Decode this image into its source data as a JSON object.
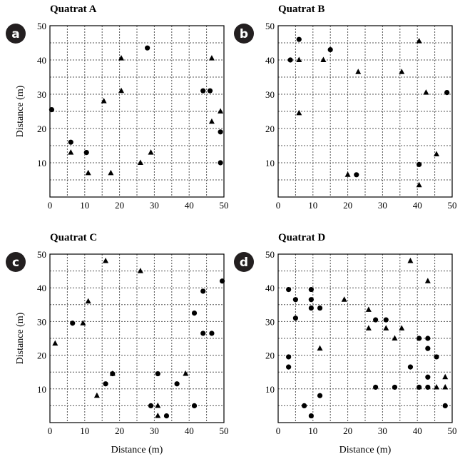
{
  "chart_data": [
    {
      "type": "scatter",
      "badge": "a",
      "title": "Quatrat A",
      "xlabel": "",
      "ylabel": "Distance (m)",
      "xlim": [
        0,
        50
      ],
      "ylim": [
        0,
        50
      ],
      "xticks": [
        "0",
        "10",
        "20",
        "30",
        "40",
        "50"
      ],
      "yticks": [
        "10",
        "20",
        "30",
        "40",
        "50"
      ],
      "grid": true,
      "series": [
        {
          "marker": "circle",
          "points": [
            [
              0.5,
              25.5
            ],
            [
              6,
              16
            ],
            [
              10.5,
              13
            ],
            [
              28,
              43.5
            ],
            [
              44,
              31
            ],
            [
              46,
              31
            ],
            [
              49,
              19
            ],
            [
              49,
              10
            ]
          ]
        },
        {
          "marker": "triangle",
          "points": [
            [
              6,
              13
            ],
            [
              11,
              7
            ],
            [
              15.5,
              28
            ],
            [
              17.5,
              7
            ],
            [
              20.5,
              40.5
            ],
            [
              20.5,
              31
            ],
            [
              26,
              10
            ],
            [
              29,
              13
            ],
            [
              46.5,
              40.5
            ],
            [
              46.5,
              22
            ],
            [
              49,
              25
            ]
          ]
        }
      ]
    },
    {
      "type": "scatter",
      "badge": "b",
      "title": "Quatrat B",
      "xlabel": "",
      "ylabel": "",
      "xlim": [
        0,
        50
      ],
      "ylim": [
        0,
        50
      ],
      "xticks": [
        "0",
        "10",
        "20",
        "30",
        "40",
        "50"
      ],
      "yticks": [
        "10",
        "20",
        "30",
        "40",
        "50"
      ],
      "grid": true,
      "series": [
        {
          "marker": "circle",
          "points": [
            [
              3.5,
              40
            ],
            [
              6,
              46
            ],
            [
              15,
              43
            ],
            [
              22.5,
              6.5
            ],
            [
              40.5,
              9.5
            ],
            [
              48.5,
              30.5
            ]
          ]
        },
        {
          "marker": "triangle",
          "points": [
            [
              6,
              40
            ],
            [
              6,
              24.5
            ],
            [
              13,
              40
            ],
            [
              23,
              36.5
            ],
            [
              35.5,
              36.5
            ],
            [
              40.5,
              45.5
            ],
            [
              40.5,
              3.5
            ],
            [
              42.5,
              30.5
            ],
            [
              45.5,
              12.5
            ],
            [
              20,
              6.5
            ]
          ]
        }
      ]
    },
    {
      "type": "scatter",
      "badge": "c",
      "title": "Quatrat C",
      "xlabel": "Distance (m)",
      "ylabel": "Distance (m)",
      "xlim": [
        0,
        50
      ],
      "ylim": [
        0,
        50
      ],
      "xticks": [
        "0",
        "10",
        "20",
        "30",
        "40",
        "50"
      ],
      "yticks": [
        "10",
        "20",
        "30",
        "40",
        "50"
      ],
      "grid": true,
      "series": [
        {
          "marker": "circle",
          "points": [
            [
              6.5,
              29.5
            ],
            [
              16,
              11.5
            ],
            [
              18,
              14.5
            ],
            [
              29,
              5
            ],
            [
              31,
              14.5
            ],
            [
              33.5,
              2
            ],
            [
              36.5,
              11.5
            ],
            [
              41.5,
              5
            ],
            [
              41.5,
              32.5
            ],
            [
              44,
              39
            ],
            [
              44,
              26.5
            ],
            [
              46.5,
              26.5
            ],
            [
              49.5,
              42
            ]
          ]
        },
        {
          "marker": "triangle",
          "points": [
            [
              1.5,
              23.5
            ],
            [
              9.5,
              29.5
            ],
            [
              11,
              36
            ],
            [
              13.5,
              8
            ],
            [
              16,
              48
            ],
            [
              18,
              14.5
            ],
            [
              26,
              45
            ],
            [
              31,
              5
            ],
            [
              31,
              2
            ],
            [
              39,
              14.5
            ]
          ]
        }
      ]
    },
    {
      "type": "scatter",
      "badge": "d",
      "title": "Quatrat D",
      "xlabel": "Distance (m)",
      "ylabel": "",
      "xlim": [
        0,
        50
      ],
      "ylim": [
        0,
        50
      ],
      "xticks": [
        "0",
        "10",
        "20",
        "30",
        "40",
        "50"
      ],
      "yticks": [
        "10",
        "20",
        "30",
        "40",
        "50"
      ],
      "grid": true,
      "series": [
        {
          "marker": "circle",
          "points": [
            [
              3,
              39.5
            ],
            [
              3,
              19.5
            ],
            [
              3,
              16.5
            ],
            [
              5,
              36.5
            ],
            [
              5,
              31
            ],
            [
              7.5,
              5
            ],
            [
              9.5,
              2
            ],
            [
              9.5,
              39.5
            ],
            [
              9.5,
              36.5
            ],
            [
              9.5,
              34
            ],
            [
              12,
              34
            ],
            [
              12,
              8
            ],
            [
              28,
              10.5
            ],
            [
              28,
              30.5
            ],
            [
              31,
              30.5
            ],
            [
              33.5,
              10.5
            ],
            [
              38,
              16.5
            ],
            [
              40.5,
              25
            ],
            [
              40.5,
              10.5
            ],
            [
              43,
              25
            ],
            [
              43,
              22
            ],
            [
              43,
              13.5
            ],
            [
              43,
              10.5
            ],
            [
              45.5,
              19.5
            ],
            [
              48,
              5
            ]
          ]
        },
        {
          "marker": "triangle",
          "points": [
            [
              12,
              22
            ],
            [
              19,
              36.5
            ],
            [
              26,
              33.5
            ],
            [
              26,
              28
            ],
            [
              31,
              28
            ],
            [
              33.5,
              25
            ],
            [
              35.5,
              28
            ],
            [
              38,
              48
            ],
            [
              43,
              42
            ],
            [
              45.5,
              10.5
            ],
            [
              48,
              13.5
            ],
            [
              48,
              10.5
            ]
          ]
        }
      ]
    }
  ]
}
